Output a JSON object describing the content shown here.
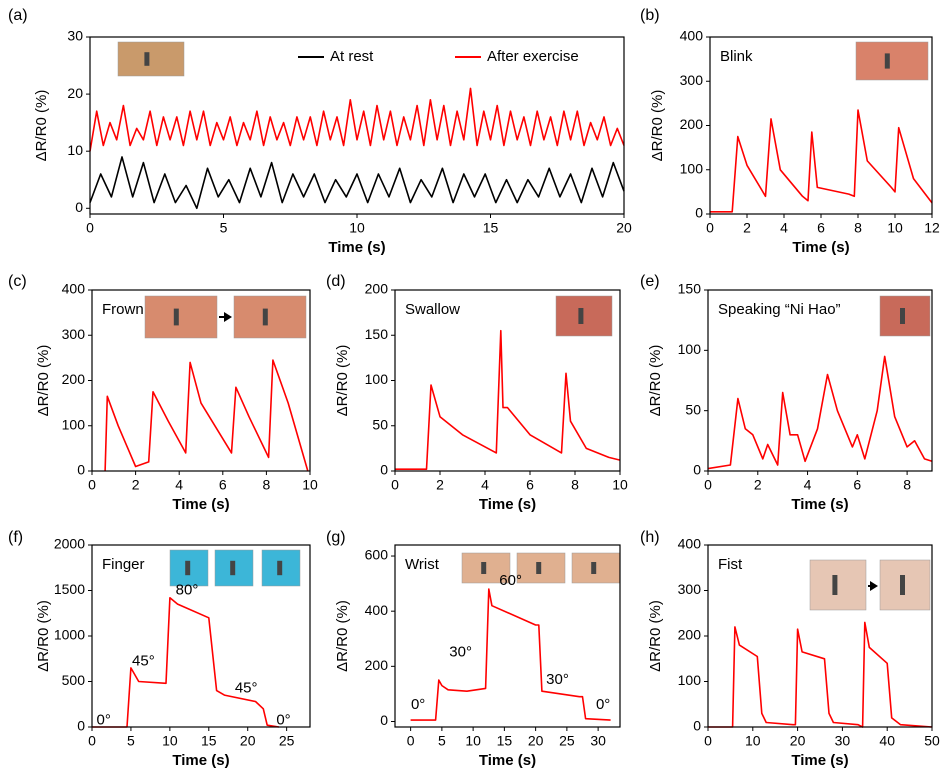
{
  "chart_data": [
    {
      "type": "line",
      "panel_label": "(a)",
      "xlabel": "Time (s)",
      "ylabel": "ΔR/R0 (%)",
      "xlim": [
        0,
        20
      ],
      "ylim": [
        -1,
        30
      ],
      "xticks": [
        0,
        5,
        10,
        15,
        20
      ],
      "yticks": [
        0,
        10,
        20,
        30
      ],
      "legend": "top-right",
      "series": [
        {
          "name": "At rest",
          "color": "#000000",
          "x": [
            0,
            0.4,
            0.8,
            1.2,
            1.6,
            2,
            2.4,
            2.8,
            3.2,
            3.6,
            4,
            4.4,
            4.8,
            5.2,
            5.6,
            6,
            6.4,
            6.8,
            7.2,
            7.6,
            8,
            8.4,
            8.8,
            9.2,
            9.6,
            10,
            10.4,
            10.8,
            11.2,
            11.6,
            12,
            12.4,
            12.8,
            13.2,
            13.6,
            14,
            14.4,
            14.8,
            15.2,
            15.6,
            16,
            16.4,
            16.8,
            17.2,
            17.6,
            18,
            18.4,
            18.8,
            19.2,
            19.6,
            20
          ],
          "values": [
            1,
            6,
            2,
            9,
            2,
            8,
            1,
            6,
            1,
            4,
            0,
            7,
            2,
            5,
            1,
            7,
            2,
            8,
            1,
            6,
            2,
            6,
            1,
            5,
            2,
            6,
            1,
            6,
            2,
            7,
            1,
            5,
            2,
            7,
            1,
            6,
            2,
            6,
            1,
            5,
            1,
            5,
            2,
            7,
            2,
            6,
            1,
            7,
            2,
            8,
            3
          ]
        },
        {
          "name": "After exercise",
          "color": "#ff0000",
          "x": [
            0,
            0.25,
            0.5,
            0.75,
            1,
            1.25,
            1.5,
            1.75,
            2,
            2.25,
            2.5,
            2.75,
            3,
            3.25,
            3.5,
            3.75,
            4,
            4.25,
            4.5,
            4.75,
            5,
            5.25,
            5.5,
            5.75,
            6,
            6.25,
            6.5,
            6.75,
            7,
            7.25,
            7.5,
            7.75,
            8,
            8.25,
            8.5,
            8.75,
            9,
            9.25,
            9.5,
            9.75,
            10,
            10.25,
            10.5,
            10.75,
            11,
            11.25,
            11.5,
            11.75,
            12,
            12.25,
            12.5,
            12.75,
            13,
            13.25,
            13.5,
            13.75,
            14,
            14.25,
            14.5,
            14.75,
            15,
            15.25,
            15.5,
            15.75,
            16,
            16.25,
            16.5,
            16.75,
            17,
            17.25,
            17.5,
            17.75,
            18,
            18.25,
            18.5,
            18.75,
            19,
            19.25,
            19.5,
            19.75,
            20
          ],
          "values": [
            10,
            17,
            11,
            15,
            12,
            18,
            11,
            14,
            12,
            17,
            11,
            16,
            12,
            16,
            11,
            17,
            12,
            17,
            11,
            15,
            12,
            16,
            11,
            15,
            12,
            17,
            11,
            16,
            12,
            15,
            11,
            16,
            12,
            16,
            11,
            17,
            12,
            16,
            11,
            19,
            12,
            17,
            11,
            18,
            12,
            17,
            11,
            16,
            12,
            18,
            11,
            19,
            12,
            18,
            11,
            17,
            12,
            21,
            11,
            17,
            12,
            18,
            11,
            17,
            12,
            16,
            11,
            17,
            12,
            16,
            11,
            17,
            12,
            17,
            11,
            15,
            12,
            16,
            11,
            14,
            11
          ]
        }
      ]
    },
    {
      "type": "line",
      "panel_label": "(b)",
      "label": "Blink",
      "xlabel": "Time (s)",
      "ylabel": "ΔR/R0 (%)",
      "xlim": [
        0,
        12
      ],
      "ylim": [
        0,
        400
      ],
      "xticks": [
        0,
        2,
        4,
        6,
        8,
        10,
        12
      ],
      "yticks": [
        0,
        100,
        200,
        300,
        400
      ],
      "series": [
        {
          "color": "#ff0000",
          "x": [
            0,
            1.2,
            1.5,
            2,
            3,
            3.3,
            3.8,
            5,
            5.3,
            5.5,
            5.8,
            7.5,
            7.8,
            8,
            8.5,
            9.8,
            10,
            10.2,
            11,
            12
          ],
          "values": [
            5,
            5,
            175,
            110,
            40,
            215,
            100,
            40,
            30,
            185,
            60,
            45,
            40,
            235,
            120,
            60,
            50,
            195,
            80,
            25
          ]
        }
      ]
    },
    {
      "type": "line",
      "panel_label": "(c)",
      "label": "Frown",
      "xlabel": "Time (s)",
      "ylabel": "ΔR/R0 (%)",
      "xlim": [
        0,
        10
      ],
      "ylim": [
        0,
        400
      ],
      "xticks": [
        0,
        2,
        4,
        6,
        8,
        10
      ],
      "yticks": [
        0,
        100,
        200,
        300,
        400
      ],
      "series": [
        {
          "color": "#ff0000",
          "x": [
            0.6,
            0.7,
            1.2,
            2,
            2.6,
            2.8,
            3.5,
            4.3,
            4.5,
            5,
            6.4,
            6.6,
            7.2,
            8.1,
            8.3,
            9,
            9.9
          ],
          "values": [
            0,
            165,
            100,
            10,
            20,
            175,
            110,
            40,
            240,
            150,
            40,
            185,
            120,
            30,
            245,
            150,
            0
          ]
        }
      ]
    },
    {
      "type": "line",
      "panel_label": "(d)",
      "label": "Swallow",
      "xlabel": "Time (s)",
      "ylabel": "ΔR/R0 (%)",
      "xlim": [
        0,
        10
      ],
      "ylim": [
        0,
        200
      ],
      "xticks": [
        0,
        2,
        4,
        6,
        8,
        10
      ],
      "yticks": [
        0,
        50,
        100,
        150,
        200
      ],
      "series": [
        {
          "color": "#ff0000",
          "x": [
            0,
            1.4,
            1.6,
            2,
            3,
            4.5,
            4.7,
            4.8,
            5,
            6,
            7.4,
            7.6,
            7.8,
            8.5,
            9.5,
            10
          ],
          "values": [
            2,
            2,
            95,
            60,
            40,
            20,
            155,
            70,
            70,
            40,
            20,
            108,
            55,
            25,
            15,
            12
          ]
        }
      ]
    },
    {
      "type": "line",
      "panel_label": "(e)",
      "label": "Speaking “Ni Hao”",
      "xlabel": "Time (s)",
      "ylabel": "ΔR/R0 (%)",
      "xlim": [
        0,
        9
      ],
      "ylim": [
        0,
        150
      ],
      "xticks": [
        0,
        2,
        4,
        6,
        8
      ],
      "yticks": [
        0,
        50,
        100,
        150
      ],
      "series": [
        {
          "color": "#ff0000",
          "x": [
            0,
            0.9,
            1.2,
            1.5,
            1.8,
            2.2,
            2.4,
            2.8,
            3,
            3.3,
            3.6,
            3.9,
            4.4,
            4.8,
            5.2,
            5.8,
            6,
            6.3,
            6.8,
            7.1,
            7.5,
            8,
            8.3,
            8.7,
            9
          ],
          "values": [
            2,
            5,
            60,
            35,
            30,
            10,
            22,
            5,
            65,
            30,
            30,
            8,
            35,
            80,
            50,
            20,
            30,
            10,
            50,
            95,
            45,
            20,
            25,
            10,
            8
          ]
        }
      ]
    },
    {
      "type": "line",
      "panel_label": "(f)",
      "label": "Finger",
      "xlabel": "Time (s)",
      "ylabel": "ΔR/R0 (%)",
      "xlim": [
        0,
        28
      ],
      "ylim": [
        0,
        2000
      ],
      "xticks": [
        0,
        5,
        10,
        15,
        20,
        25
      ],
      "yticks": [
        0,
        500,
        1000,
        1500,
        2000
      ],
      "annotations": [
        "0°",
        "45°",
        "80°",
        "45°",
        "0°"
      ],
      "series": [
        {
          "color": "#ff0000",
          "x": [
            0,
            4.5,
            5,
            6,
            9.5,
            10,
            11,
            15,
            16,
            17,
            21,
            22,
            22.5,
            24
          ],
          "values": [
            0,
            0,
            650,
            500,
            480,
            1420,
            1350,
            1200,
            400,
            350,
            280,
            200,
            20,
            0
          ]
        }
      ]
    },
    {
      "type": "line",
      "panel_label": "(g)",
      "label": "Wrist",
      "xlabel": "Time (s)",
      "ylabel": "ΔR/R0 (%)",
      "xlim": [
        -2.5,
        33.5
      ],
      "ylim": [
        -20,
        640
      ],
      "xticks": [
        0,
        5,
        10,
        15,
        20,
        25,
        30
      ],
      "yticks": [
        0,
        200,
        400,
        600
      ],
      "annotations": [
        "0°",
        "30°",
        "60°",
        "30°",
        "0°"
      ],
      "series": [
        {
          "color": "#ff0000",
          "x": [
            0,
            4,
            4.5,
            5,
            6,
            9,
            12,
            12.5,
            13,
            20,
            20.5,
            21,
            27,
            27.5,
            28,
            32
          ],
          "values": [
            5,
            5,
            150,
            130,
            115,
            110,
            120,
            480,
            420,
            350,
            350,
            110,
            90,
            90,
            10,
            5
          ]
        }
      ]
    },
    {
      "type": "line",
      "panel_label": "(h)",
      "label": "Fist",
      "xlabel": "Time (s)",
      "ylabel": "ΔR/R0 (%)",
      "xlim": [
        0,
        50
      ],
      "ylim": [
        0,
        400
      ],
      "xticks": [
        0,
        10,
        20,
        30,
        40,
        50
      ],
      "yticks": [
        0,
        100,
        200,
        300,
        400
      ],
      "series": [
        {
          "color": "#ff0000",
          "x": [
            0,
            5.5,
            6,
            7,
            11,
            12,
            13,
            19,
            19.5,
            20,
            21,
            26,
            27,
            28,
            33.5,
            34.5,
            35,
            36,
            40,
            41,
            43,
            50
          ],
          "values": [
            0,
            0,
            220,
            180,
            155,
            30,
            10,
            5,
            5,
            215,
            165,
            150,
            30,
            10,
            5,
            0,
            230,
            175,
            140,
            20,
            5,
            0
          ]
        }
      ]
    }
  ]
}
